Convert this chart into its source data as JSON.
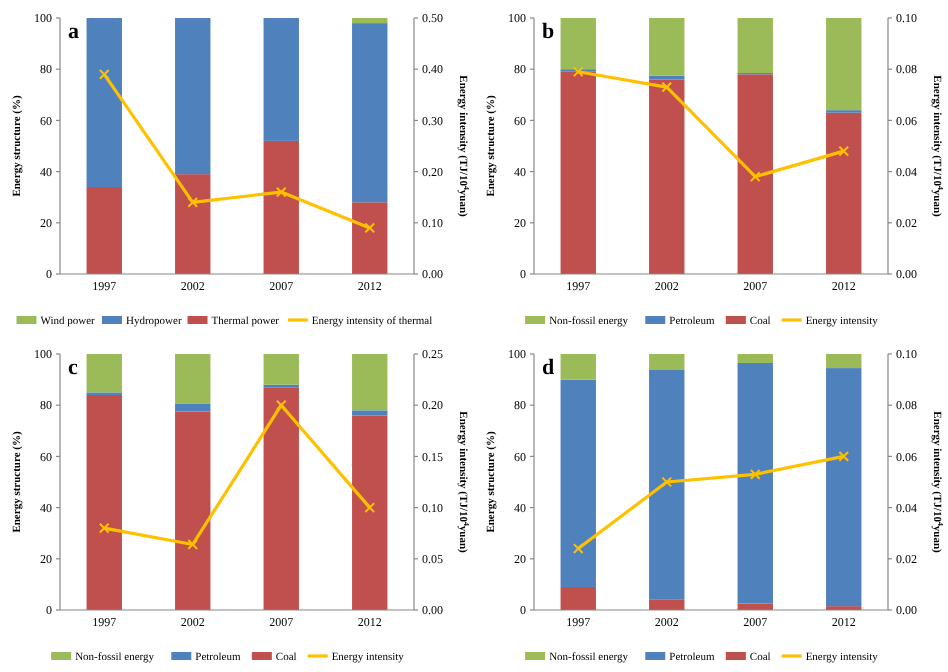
{
  "chart_data": [
    {
      "type": "bar",
      "title": "a",
      "stacked": true,
      "categories": [
        "1997",
        "2002",
        "2007",
        "2012"
      ],
      "ylabel": "Energy structure (%)",
      "y2label": "Energy intensity (TJ/10$^{4}$yuan)",
      "ylim": [
        0,
        100
      ],
      "yticks": [
        0,
        20,
        40,
        60,
        80,
        100
      ],
      "y2lim": [
        0,
        0.5
      ],
      "y2ticks": [
        {
          "value": 0,
          "label": "0.00"
        },
        {
          "value": 0.1,
          "label": "0.10"
        },
        {
          "value": 0.2,
          "label": "0.20"
        },
        {
          "value": 0.3,
          "label": "0.30"
        },
        {
          "value": 0.4,
          "label": "0.40"
        },
        {
          "value": 0.5,
          "label": "0.50"
        }
      ],
      "legend": "bottom",
      "marker": "cross",
      "series": [
        {
          "name": "Thermal power",
          "color": "#c0504d",
          "values": [
            34,
            39,
            52,
            28
          ]
        },
        {
          "name": "Hydropower",
          "color": "#4f81bd",
          "values": [
            66,
            61,
            48,
            70
          ]
        },
        {
          "name": "Wind power",
          "color": "#9bbb59",
          "values": [
            0,
            0,
            0,
            2
          ]
        },
        {
          "name": "Energy intensity of thermal",
          "type": "line",
          "axis": "y2",
          "color": "#ffc000",
          "values": [
            0.39,
            0.14,
            0.16,
            0.09
          ]
        }
      ]
    },
    {
      "type": "bar",
      "title": "b",
      "stacked": true,
      "categories": [
        "1997",
        "2002",
        "2007",
        "2012"
      ],
      "ylabel": "Energy structure (%)",
      "y2label": "Energy intensity (TJ/10$^{4}$yuan)",
      "ylim": [
        0,
        100
      ],
      "yticks": [
        0,
        20,
        40,
        60,
        80,
        100
      ],
      "y2lim": [
        0,
        0.1
      ],
      "y2ticks": [
        {
          "value": 0,
          "label": "0.00"
        },
        {
          "value": 0.02,
          "label": "0.02"
        },
        {
          "value": 0.04,
          "label": "0.04"
        },
        {
          "value": 0.06,
          "label": "0.06"
        },
        {
          "value": 0.08,
          "label": "0.08"
        },
        {
          "value": 0.1,
          "label": "0.10"
        }
      ],
      "legend": "bottom",
      "marker": "cross",
      "series": [
        {
          "name": "Coal",
          "color": "#c0504d",
          "values": [
            79,
            76,
            78,
            63
          ]
        },
        {
          "name": "Petroleum",
          "color": "#4f81bd",
          "values": [
            1,
            1.5,
            0.5,
            1
          ]
        },
        {
          "name": "Non-fossil energy",
          "color": "#9bbb59",
          "values": [
            20,
            22.5,
            21.5,
            36
          ]
        },
        {
          "name": "Energy intensity",
          "type": "line",
          "axis": "y2",
          "color": "#ffc000",
          "values": [
            0.079,
            0.073,
            0.038,
            0.048
          ]
        }
      ]
    },
    {
      "type": "bar",
      "title": "c",
      "stacked": true,
      "categories": [
        "1997",
        "2002",
        "2007",
        "2012"
      ],
      "ylabel": "Energy structure (%)",
      "y2label": "Energy intensity (TJ/10$^{4}$yuan)",
      "ylim": [
        0,
        100
      ],
      "yticks": [
        0,
        20,
        40,
        60,
        80,
        100
      ],
      "y2lim": [
        0,
        0.25
      ],
      "y2ticks": [
        {
          "value": 0,
          "label": "0.00"
        },
        {
          "value": 0.05,
          "label": "0.05"
        },
        {
          "value": 0.1,
          "label": "0.10"
        },
        {
          "value": 0.15,
          "label": "0.15"
        },
        {
          "value": 0.2,
          "label": "0.20"
        },
        {
          "value": 0.25,
          "label": "0.25"
        }
      ],
      "legend": "bottom",
      "marker": "cross",
      "series": [
        {
          "name": "Coal",
          "color": "#c0504d",
          "values": [
            84,
            77.5,
            87,
            76
          ]
        },
        {
          "name": "Petroleum",
          "color": "#4f81bd",
          "values": [
            1,
            3,
            1,
            2
          ]
        },
        {
          "name": "Non-fossil energy",
          "color": "#9bbb59",
          "values": [
            15,
            19.5,
            12,
            22
          ]
        },
        {
          "name": "Energy intensity",
          "type": "line",
          "axis": "y2",
          "color": "#ffc000",
          "values": [
            0.08,
            0.064,
            0.2,
            0.1
          ]
        }
      ]
    },
    {
      "type": "bar",
      "title": "d",
      "stacked": true,
      "categories": [
        "1997",
        "2002",
        "2007",
        "2012"
      ],
      "ylabel": "Energy structure (%)",
      "y2label": "Energy intensity (TJ/10$^{4}$yuan)",
      "ylim": [
        0,
        100
      ],
      "yticks": [
        0,
        20,
        40,
        60,
        80,
        100
      ],
      "y2lim": [
        0,
        0.1
      ],
      "y2ticks": [
        {
          "value": 0,
          "label": "0.00"
        },
        {
          "value": 0.02,
          "label": "0.02"
        },
        {
          "value": 0.04,
          "label": "0.04"
        },
        {
          "value": 0.06,
          "label": "0.06"
        },
        {
          "value": 0.08,
          "label": "0.08"
        },
        {
          "value": 0.1,
          "label": "0.10"
        }
      ],
      "legend": "bottom",
      "marker": "cross",
      "series": [
        {
          "name": "Coal",
          "color": "#c0504d",
          "values": [
            9,
            4,
            2.5,
            1.5
          ]
        },
        {
          "name": "Petroleum",
          "color": "#4f81bd",
          "values": [
            81,
            90,
            94,
            93
          ]
        },
        {
          "name": "Non-fossil energy",
          "color": "#9bbb59",
          "values": [
            10,
            6,
            3.5,
            5.5
          ]
        },
        {
          "name": "Energy intensity",
          "type": "line",
          "axis": "y2",
          "color": "#ffc000",
          "values": [
            0.024,
            0.05,
            0.053,
            0.06
          ]
        }
      ]
    }
  ]
}
